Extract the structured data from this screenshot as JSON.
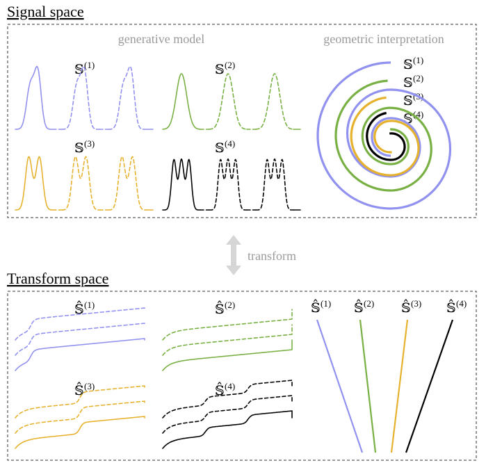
{
  "signal_space": {
    "title": "Signal space",
    "generative_label": "generative model",
    "geometric_label": "geometric interpretation",
    "panels": [
      {
        "symbol": "𝕊",
        "superscript": "(1)",
        "color": "#9191ef"
      },
      {
        "symbol": "𝕊",
        "superscript": "(2)",
        "color": "#78b043"
      },
      {
        "symbol": "𝕊",
        "superscript": "(3)",
        "color": "#e6b22e"
      },
      {
        "symbol": "𝕊",
        "superscript": "(4)",
        "color": "#000000"
      }
    ]
  },
  "arrow": {
    "label": "transform",
    "color": "#d6d6d6"
  },
  "transform_space": {
    "title": "Transform space",
    "panels": [
      {
        "symbol": "𝕊̂",
        "superscript": "(1)",
        "color": "#9191ef"
      },
      {
        "symbol": "𝕊̂",
        "superscript": "(2)",
        "color": "#78b043"
      },
      {
        "symbol": "𝕊̂",
        "superscript": "(3)",
        "color": "#e6b22e"
      },
      {
        "symbol": "𝕊̂",
        "superscript": "(4)",
        "color": "#000000"
      }
    ]
  }
}
